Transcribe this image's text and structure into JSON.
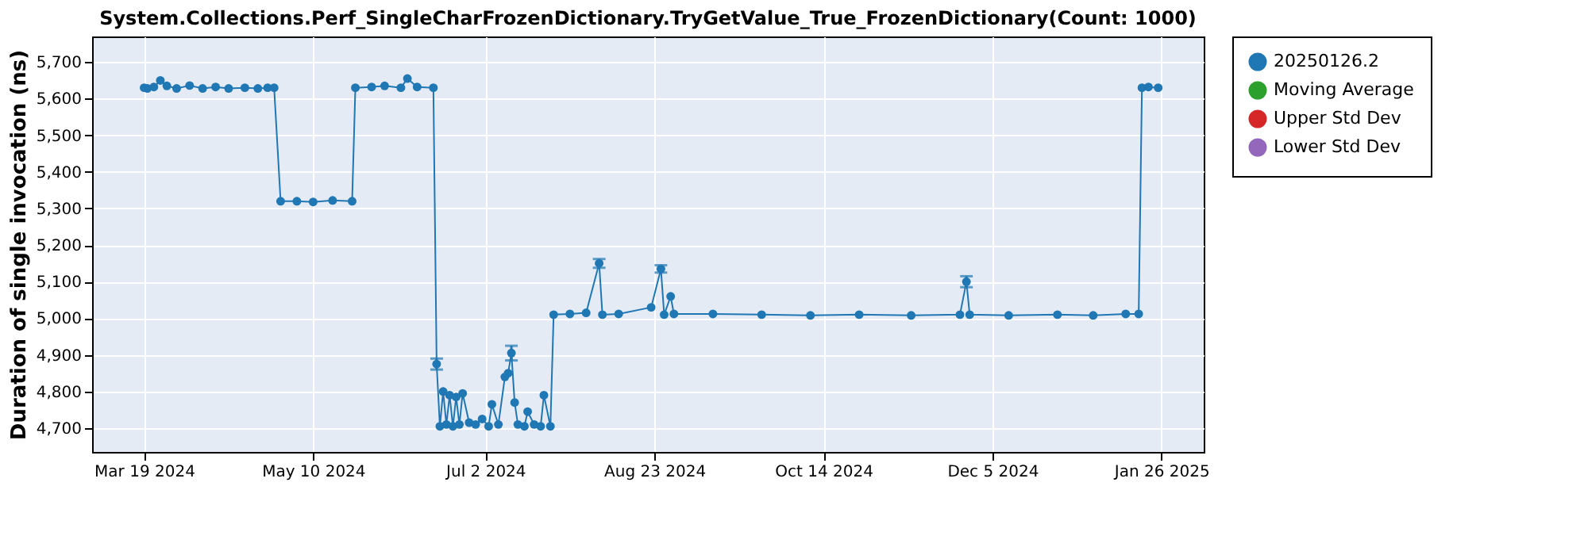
{
  "chart_data": {
    "type": "line",
    "title": "System.Collections.Perf_SingleCharFrozenDictionary.TryGetValue_True_FrozenDictionary(Count: 1000)",
    "ylabel": "Duration of single invocation (ns)",
    "x": [
      "2024-03-19",
      "2024-03-20",
      "2024-03-22",
      "2024-03-24",
      "2024-03-26",
      "2024-03-29",
      "2024-04-02",
      "2024-04-06",
      "2024-04-10",
      "2024-04-14",
      "2024-04-19",
      "2024-04-23",
      "2024-04-26",
      "2024-04-28",
      "2024-04-30",
      "2024-05-05",
      "2024-05-10",
      "2024-05-16",
      "2024-05-22",
      "2024-05-23",
      "2024-05-28",
      "2024-06-01",
      "2024-06-06",
      "2024-06-08",
      "2024-06-11",
      "2024-06-16",
      "2024-06-17",
      "2024-06-18",
      "2024-06-19",
      "2024-06-20",
      "2024-06-21",
      "2024-06-22",
      "2024-06-23",
      "2024-06-24",
      "2024-06-25",
      "2024-06-27",
      "2024-06-29",
      "2024-07-01",
      "2024-07-03",
      "2024-07-04",
      "2024-07-06",
      "2024-07-08",
      "2024-07-09",
      "2024-07-10",
      "2024-07-11",
      "2024-07-12",
      "2024-07-14",
      "2024-07-15",
      "2024-07-17",
      "2024-07-19",
      "2024-07-20",
      "2024-07-22",
      "2024-07-23",
      "2024-07-28",
      "2024-08-02",
      "2024-08-06",
      "2024-08-07",
      "2024-08-12",
      "2024-08-22",
      "2024-08-25",
      "2024-08-26",
      "2024-08-28",
      "2024-08-29",
      "2024-09-10",
      "2024-09-25",
      "2024-10-10",
      "2024-10-25",
      "2024-11-10",
      "2024-11-25",
      "2024-11-27",
      "2024-11-28",
      "2024-12-10",
      "2024-12-25",
      "2025-01-05",
      "2025-01-15",
      "2025-01-19",
      "2025-01-20",
      "2025-01-22",
      "2025-01-25"
    ],
    "series": [
      {
        "name": "20250126.2",
        "color": "#1f77b4",
        "values": [
          5630,
          5628,
          5632,
          5650,
          5635,
          5628,
          5636,
          5628,
          5632,
          5628,
          5630,
          5628,
          5630,
          5630,
          5320,
          5320,
          5318,
          5322,
          5320,
          5630,
          5632,
          5635,
          5630,
          5655,
          5632,
          5630,
          4875,
          4705,
          4800,
          4710,
          4790,
          4705,
          4785,
          4710,
          4795,
          4715,
          4710,
          4725,
          4705,
          4765,
          4710,
          4840,
          4850,
          4905,
          4770,
          4710,
          4705,
          4745,
          4710,
          4705,
          4790,
          4705,
          5010,
          5012,
          5015,
          5150,
          5010,
          5012,
          5030,
          5135,
          5010,
          5060,
          5012,
          5012,
          5010,
          5008,
          5010,
          5008,
          5010,
          5100,
          5010,
          5008,
          5010,
          5008,
          5012,
          5012,
          5630,
          5632,
          5630
        ],
        "errors": [
          null,
          null,
          null,
          null,
          null,
          null,
          null,
          null,
          null,
          null,
          null,
          null,
          null,
          null,
          null,
          null,
          null,
          null,
          null,
          null,
          null,
          null,
          null,
          null,
          null,
          null,
          15,
          null,
          null,
          null,
          null,
          null,
          null,
          null,
          null,
          null,
          null,
          null,
          null,
          null,
          null,
          null,
          null,
          20,
          null,
          null,
          null,
          null,
          null,
          null,
          null,
          null,
          null,
          null,
          null,
          12,
          null,
          null,
          null,
          10,
          null,
          null,
          null,
          null,
          null,
          null,
          null,
          null,
          null,
          15,
          null,
          null,
          null,
          null,
          null,
          null,
          null,
          null,
          null
        ]
      },
      {
        "name": "Moving Average",
        "color": "#2ca02c",
        "values": [
          null,
          null,
          null,
          null,
          null,
          null,
          null,
          null,
          null,
          null,
          null,
          null,
          null,
          null,
          null,
          null,
          null,
          null,
          null,
          null,
          null,
          null,
          null,
          null,
          null,
          null,
          null,
          null,
          null,
          null,
          null,
          null,
          null,
          null,
          null,
          null,
          null,
          null,
          null,
          null,
          null,
          null,
          null,
          null,
          null,
          null,
          null,
          null,
          null,
          null,
          null,
          null,
          null,
          null,
          null,
          null,
          null,
          null,
          null,
          null,
          null,
          null,
          null,
          null,
          null,
          null,
          null,
          null,
          null,
          null,
          null,
          null,
          null,
          null,
          null,
          null,
          null,
          null,
          null
        ]
      },
      {
        "name": "Upper Std Dev",
        "color": "#d62728",
        "values": [
          null,
          null,
          null,
          null,
          null,
          null,
          null,
          null,
          null,
          null,
          null,
          null,
          null,
          null,
          null,
          null,
          null,
          null,
          null,
          null,
          null,
          null,
          null,
          null,
          null,
          null,
          null,
          null,
          null,
          null,
          null,
          null,
          null,
          null,
          null,
          null,
          null,
          null,
          null,
          null,
          null,
          null,
          null,
          null,
          null,
          null,
          null,
          null,
          null,
          null,
          null,
          null,
          null,
          null,
          null,
          null,
          null,
          null,
          null,
          null,
          null,
          null,
          null,
          null,
          null,
          null,
          null,
          null,
          null,
          null,
          null,
          null,
          null,
          null,
          null,
          null,
          null,
          null,
          null
        ]
      },
      {
        "name": "Lower Std Dev",
        "color": "#9467bd",
        "values": [
          null,
          null,
          null,
          null,
          null,
          null,
          null,
          null,
          null,
          null,
          null,
          null,
          null,
          null,
          null,
          null,
          null,
          null,
          null,
          null,
          null,
          null,
          null,
          null,
          null,
          null,
          null,
          null,
          null,
          null,
          null,
          null,
          null,
          null,
          null,
          null,
          null,
          null,
          null,
          null,
          null,
          null,
          null,
          null,
          null,
          null,
          null,
          null,
          null,
          null,
          null,
          null,
          null,
          null,
          null,
          null,
          null,
          null,
          null,
          null,
          null,
          null,
          null,
          null,
          null,
          null,
          null,
          null,
          null,
          null,
          null,
          null,
          null,
          null,
          null,
          null,
          null,
          null,
          null
        ]
      }
    ],
    "xlim": [
      "2024-03-03",
      "2025-02-08"
    ],
    "xticks": [
      {
        "value": "2024-03-19",
        "label": "Mar 19 2024"
      },
      {
        "value": "2024-05-10",
        "label": "May 10 2024"
      },
      {
        "value": "2024-07-02",
        "label": "Jul 2 2024"
      },
      {
        "value": "2024-08-23",
        "label": "Aug 23 2024"
      },
      {
        "value": "2024-10-14",
        "label": "Oct 14 2024"
      },
      {
        "value": "2024-12-05",
        "label": "Dec 5 2024"
      },
      {
        "value": "2025-01-26",
        "label": "Jan 26 2025"
      }
    ],
    "ylim": [
      4635,
      5770
    ],
    "yticks": [
      {
        "value": 4700,
        "label": "4,700"
      },
      {
        "value": 4800,
        "label": "4,800"
      },
      {
        "value": 4900,
        "label": "4,900"
      },
      {
        "value": 5000,
        "label": "5,000"
      },
      {
        "value": 5100,
        "label": "5,100"
      },
      {
        "value": 5200,
        "label": "5,200"
      },
      {
        "value": 5300,
        "label": "5,300"
      },
      {
        "value": 5400,
        "label": "5,400"
      },
      {
        "value": 5500,
        "label": "5,500"
      },
      {
        "value": 5600,
        "label": "5,600"
      },
      {
        "value": 5700,
        "label": "5,700"
      }
    ],
    "grid": true,
    "legend": "right",
    "marker": "circle",
    "line_style": "solid"
  }
}
